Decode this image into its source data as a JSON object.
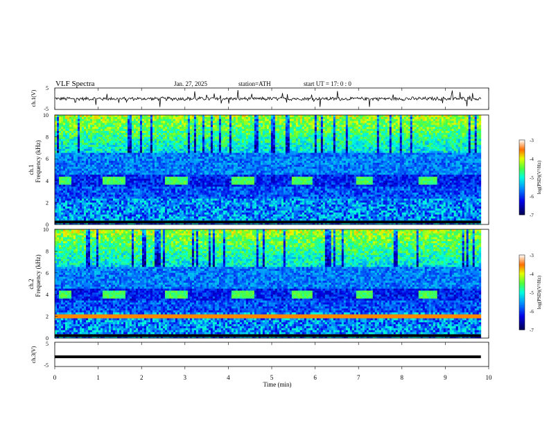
{
  "header": {
    "title": "VLF  Spectra",
    "date": "Jan. 27, 2025",
    "station": "station=ATH",
    "start": "start  UT  =    17: 0  : 0"
  },
  "chart_data": [
    {
      "type": "line",
      "panel": "ch1-waveform",
      "ylabel": "ch.1(V)",
      "ylim": [
        -5,
        5
      ],
      "yticks": [
        "5",
        "-5"
      ],
      "color": "#000000"
    },
    {
      "type": "heatmap",
      "panel": "ch1-spectrogram",
      "ylabel_channel": "ch.1",
      "ylabel": "Frequency  (kHz)",
      "ylim": [
        0,
        10
      ],
      "yticks": [
        "0",
        "2",
        "4",
        "6",
        "8",
        "10"
      ],
      "xlim": [
        0,
        10
      ],
      "colorbar": {
        "label": "log(PSD)(V²/Hz)",
        "ticks": [
          "-3",
          "-4",
          "-5",
          "-6",
          "-7"
        ],
        "range": [
          -7,
          -3
        ]
      },
      "transmitter_on_intervals_min": [
        [
          0.08,
          0.38
        ],
        [
          1.08,
          1.65
        ],
        [
          2.55,
          3.05
        ],
        [
          4.05,
          4.6
        ],
        [
          5.45,
          5.95
        ],
        [
          6.95,
          7.35
        ],
        [
          8.4,
          8.8
        ]
      ],
      "transmitter_band_khz": [
        3.6,
        4.4
      ]
    },
    {
      "type": "heatmap",
      "panel": "ch2-spectrogram",
      "ylabel_channel": "ch.2",
      "ylabel": "Frequency  (kHz)",
      "ylim": [
        0,
        10
      ],
      "yticks": [
        "0",
        "2",
        "4",
        "6",
        "8",
        "10"
      ],
      "xlim": [
        0,
        10
      ],
      "colorbar": {
        "label": "log(PSD)(V²/Hz)",
        "ticks": [
          "-3",
          "-4",
          "-5",
          "-6",
          "-7"
        ],
        "range": [
          -7,
          -3
        ]
      },
      "transmitter_on_intervals_min": [
        [
          0.08,
          0.38
        ],
        [
          1.08,
          1.65
        ],
        [
          2.55,
          3.05
        ],
        [
          4.05,
          4.6
        ],
        [
          5.45,
          5.95
        ],
        [
          6.95,
          7.35
        ],
        [
          8.4,
          8.8
        ]
      ],
      "transmitter_band_khz": [
        3.6,
        4.4
      ]
    },
    {
      "type": "line",
      "panel": "ch3-waveform",
      "ylabel": "ch.3(V)",
      "ylim": [
        -5,
        5
      ],
      "yticks": [
        "5",
        "-5"
      ],
      "constant_value": -1,
      "color": "#000000"
    }
  ],
  "x_axis": {
    "label": "Time  (min)",
    "ticks": [
      "0",
      "1",
      "2",
      "3",
      "4",
      "5",
      "6",
      "7",
      "8",
      "9",
      "10"
    ],
    "range": [
      0,
      10
    ]
  }
}
